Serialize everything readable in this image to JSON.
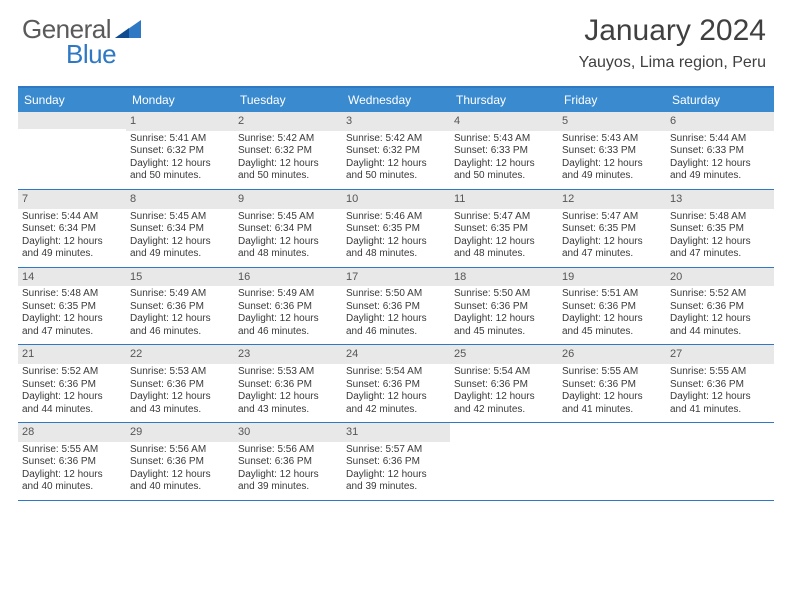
{
  "logo": {
    "text1": "General",
    "text2": "Blue"
  },
  "title": "January 2024",
  "location": "Yauyos, Lima region, Peru",
  "colors": {
    "header_bg": "#3a8ad0",
    "border": "#2f78c3",
    "daynum_bg": "#e8e8e8",
    "text": "#3a3a3a"
  },
  "day_names": [
    "Sunday",
    "Monday",
    "Tuesday",
    "Wednesday",
    "Thursday",
    "Friday",
    "Saturday"
  ],
  "weeks": [
    [
      null,
      {
        "n": "1",
        "sunrise": "5:41 AM",
        "sunset": "6:32 PM",
        "daylight": "12 hours and 50 minutes."
      },
      {
        "n": "2",
        "sunrise": "5:42 AM",
        "sunset": "6:32 PM",
        "daylight": "12 hours and 50 minutes."
      },
      {
        "n": "3",
        "sunrise": "5:42 AM",
        "sunset": "6:32 PM",
        "daylight": "12 hours and 50 minutes."
      },
      {
        "n": "4",
        "sunrise": "5:43 AM",
        "sunset": "6:33 PM",
        "daylight": "12 hours and 50 minutes."
      },
      {
        "n": "5",
        "sunrise": "5:43 AM",
        "sunset": "6:33 PM",
        "daylight": "12 hours and 49 minutes."
      },
      {
        "n": "6",
        "sunrise": "5:44 AM",
        "sunset": "6:33 PM",
        "daylight": "12 hours and 49 minutes."
      }
    ],
    [
      {
        "n": "7",
        "sunrise": "5:44 AM",
        "sunset": "6:34 PM",
        "daylight": "12 hours and 49 minutes."
      },
      {
        "n": "8",
        "sunrise": "5:45 AM",
        "sunset": "6:34 PM",
        "daylight": "12 hours and 49 minutes."
      },
      {
        "n": "9",
        "sunrise": "5:45 AM",
        "sunset": "6:34 PM",
        "daylight": "12 hours and 48 minutes."
      },
      {
        "n": "10",
        "sunrise": "5:46 AM",
        "sunset": "6:35 PM",
        "daylight": "12 hours and 48 minutes."
      },
      {
        "n": "11",
        "sunrise": "5:47 AM",
        "sunset": "6:35 PM",
        "daylight": "12 hours and 48 minutes."
      },
      {
        "n": "12",
        "sunrise": "5:47 AM",
        "sunset": "6:35 PM",
        "daylight": "12 hours and 47 minutes."
      },
      {
        "n": "13",
        "sunrise": "5:48 AM",
        "sunset": "6:35 PM",
        "daylight": "12 hours and 47 minutes."
      }
    ],
    [
      {
        "n": "14",
        "sunrise": "5:48 AM",
        "sunset": "6:35 PM",
        "daylight": "12 hours and 47 minutes."
      },
      {
        "n": "15",
        "sunrise": "5:49 AM",
        "sunset": "6:36 PM",
        "daylight": "12 hours and 46 minutes."
      },
      {
        "n": "16",
        "sunrise": "5:49 AM",
        "sunset": "6:36 PM",
        "daylight": "12 hours and 46 minutes."
      },
      {
        "n": "17",
        "sunrise": "5:50 AM",
        "sunset": "6:36 PM",
        "daylight": "12 hours and 46 minutes."
      },
      {
        "n": "18",
        "sunrise": "5:50 AM",
        "sunset": "6:36 PM",
        "daylight": "12 hours and 45 minutes."
      },
      {
        "n": "19",
        "sunrise": "5:51 AM",
        "sunset": "6:36 PM",
        "daylight": "12 hours and 45 minutes."
      },
      {
        "n": "20",
        "sunrise": "5:52 AM",
        "sunset": "6:36 PM",
        "daylight": "12 hours and 44 minutes."
      }
    ],
    [
      {
        "n": "21",
        "sunrise": "5:52 AM",
        "sunset": "6:36 PM",
        "daylight": "12 hours and 44 minutes."
      },
      {
        "n": "22",
        "sunrise": "5:53 AM",
        "sunset": "6:36 PM",
        "daylight": "12 hours and 43 minutes."
      },
      {
        "n": "23",
        "sunrise": "5:53 AM",
        "sunset": "6:36 PM",
        "daylight": "12 hours and 43 minutes."
      },
      {
        "n": "24",
        "sunrise": "5:54 AM",
        "sunset": "6:36 PM",
        "daylight": "12 hours and 42 minutes."
      },
      {
        "n": "25",
        "sunrise": "5:54 AM",
        "sunset": "6:36 PM",
        "daylight": "12 hours and 42 minutes."
      },
      {
        "n": "26",
        "sunrise": "5:55 AM",
        "sunset": "6:36 PM",
        "daylight": "12 hours and 41 minutes."
      },
      {
        "n": "27",
        "sunrise": "5:55 AM",
        "sunset": "6:36 PM",
        "daylight": "12 hours and 41 minutes."
      }
    ],
    [
      {
        "n": "28",
        "sunrise": "5:55 AM",
        "sunset": "6:36 PM",
        "daylight": "12 hours and 40 minutes."
      },
      {
        "n": "29",
        "sunrise": "5:56 AM",
        "sunset": "6:36 PM",
        "daylight": "12 hours and 40 minutes."
      },
      {
        "n": "30",
        "sunrise": "5:56 AM",
        "sunset": "6:36 PM",
        "daylight": "12 hours and 39 minutes."
      },
      {
        "n": "31",
        "sunrise": "5:57 AM",
        "sunset": "6:36 PM",
        "daylight": "12 hours and 39 minutes."
      },
      null,
      null,
      null
    ]
  ],
  "labels": {
    "sunrise": "Sunrise:",
    "sunset": "Sunset:",
    "daylight": "Daylight:"
  }
}
